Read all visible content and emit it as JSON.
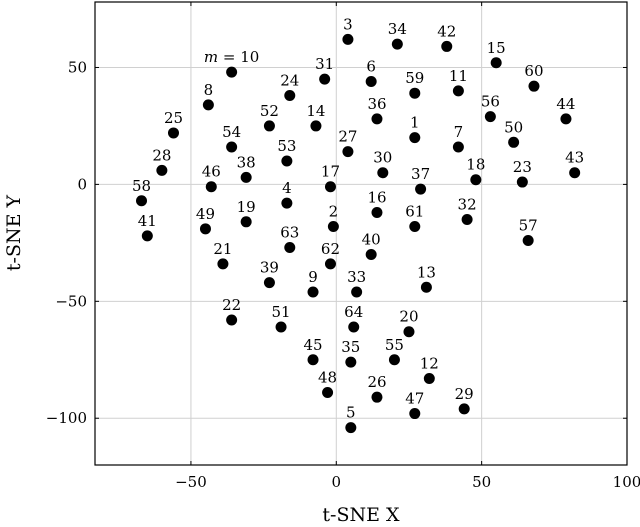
{
  "chart_data": {
    "type": "scatter",
    "xlabel": "t-SNE X",
    "ylabel": "t-SNE Y",
    "xlim": [
      -83,
      100
    ],
    "ylim": [
      -120,
      78
    ],
    "xticks": [
      -50,
      0,
      50,
      100
    ],
    "yticks": [
      -100,
      -50,
      0,
      50
    ],
    "grid": true,
    "points": [
      {
        "label": "1",
        "x": 27,
        "y": 20
      },
      {
        "label": "2",
        "x": -1,
        "y": -18
      },
      {
        "label": "3",
        "x": 4,
        "y": 62
      },
      {
        "label": "4",
        "x": -17,
        "y": -8
      },
      {
        "label": "5",
        "x": 5,
        "y": -104
      },
      {
        "label": "6",
        "x": 12,
        "y": 44
      },
      {
        "label": "7",
        "x": 42,
        "y": 16
      },
      {
        "label": "8",
        "x": -44,
        "y": 34
      },
      {
        "label": "9",
        "x": -8,
        "y": -46
      },
      {
        "label": "m = 10",
        "x": -36,
        "y": 48
      },
      {
        "label": "11",
        "x": 42,
        "y": 40
      },
      {
        "label": "12",
        "x": 32,
        "y": -83
      },
      {
        "label": "13",
        "x": 31,
        "y": -44
      },
      {
        "label": "14",
        "x": -7,
        "y": 25
      },
      {
        "label": "15",
        "x": 55,
        "y": 52
      },
      {
        "label": "16",
        "x": 14,
        "y": -12
      },
      {
        "label": "17",
        "x": -2,
        "y": -1
      },
      {
        "label": "18",
        "x": 48,
        "y": 2
      },
      {
        "label": "19",
        "x": -31,
        "y": -16
      },
      {
        "label": "20",
        "x": 25,
        "y": -63
      },
      {
        "label": "21",
        "x": -39,
        "y": -34
      },
      {
        "label": "22",
        "x": -36,
        "y": -58
      },
      {
        "label": "23",
        "x": 64,
        "y": 1
      },
      {
        "label": "24",
        "x": -16,
        "y": 38
      },
      {
        "label": "25",
        "x": -56,
        "y": 22
      },
      {
        "label": "26",
        "x": 14,
        "y": -91
      },
      {
        "label": "27",
        "x": 4,
        "y": 14
      },
      {
        "label": "28",
        "x": -60,
        "y": 6
      },
      {
        "label": "29",
        "x": 44,
        "y": -96
      },
      {
        "label": "30",
        "x": 16,
        "y": 5
      },
      {
        "label": "31",
        "x": -4,
        "y": 45
      },
      {
        "label": "32",
        "x": 45,
        "y": -15
      },
      {
        "label": "33",
        "x": 7,
        "y": -46
      },
      {
        "label": "34",
        "x": 21,
        "y": 60
      },
      {
        "label": "35",
        "x": 5,
        "y": -76
      },
      {
        "label": "36",
        "x": 14,
        "y": 28
      },
      {
        "label": "37",
        "x": 29,
        "y": -2
      },
      {
        "label": "38",
        "x": -31,
        "y": 3
      },
      {
        "label": "39",
        "x": -23,
        "y": -42
      },
      {
        "label": "40",
        "x": 12,
        "y": -30
      },
      {
        "label": "41",
        "x": -65,
        "y": -22
      },
      {
        "label": "42",
        "x": 38,
        "y": 59
      },
      {
        "label": "43",
        "x": 82,
        "y": 5
      },
      {
        "label": "44",
        "x": 79,
        "y": 28
      },
      {
        "label": "45",
        "x": -8,
        "y": -75
      },
      {
        "label": "46",
        "x": -43,
        "y": -1
      },
      {
        "label": "47",
        "x": 27,
        "y": -98
      },
      {
        "label": "48",
        "x": -3,
        "y": -89
      },
      {
        "label": "49",
        "x": -45,
        "y": -19
      },
      {
        "label": "50",
        "x": 61,
        "y": 18
      },
      {
        "label": "51",
        "x": -19,
        "y": -61
      },
      {
        "label": "52",
        "x": -23,
        "y": 25
      },
      {
        "label": "53",
        "x": -17,
        "y": 10
      },
      {
        "label": "54",
        "x": -36,
        "y": 16
      },
      {
        "label": "55",
        "x": 20,
        "y": -75
      },
      {
        "label": "56",
        "x": 53,
        "y": 29
      },
      {
        "label": "57",
        "x": 66,
        "y": -24
      },
      {
        "label": "58",
        "x": -67,
        "y": -7
      },
      {
        "label": "59",
        "x": 27,
        "y": 39
      },
      {
        "label": "60",
        "x": 68,
        "y": 42
      },
      {
        "label": "61",
        "x": 27,
        "y": -18
      },
      {
        "label": "62",
        "x": -2,
        "y": -34
      },
      {
        "label": "63",
        "x": -16,
        "y": -27
      },
      {
        "label": "64",
        "x": 6,
        "y": -61
      }
    ]
  }
}
